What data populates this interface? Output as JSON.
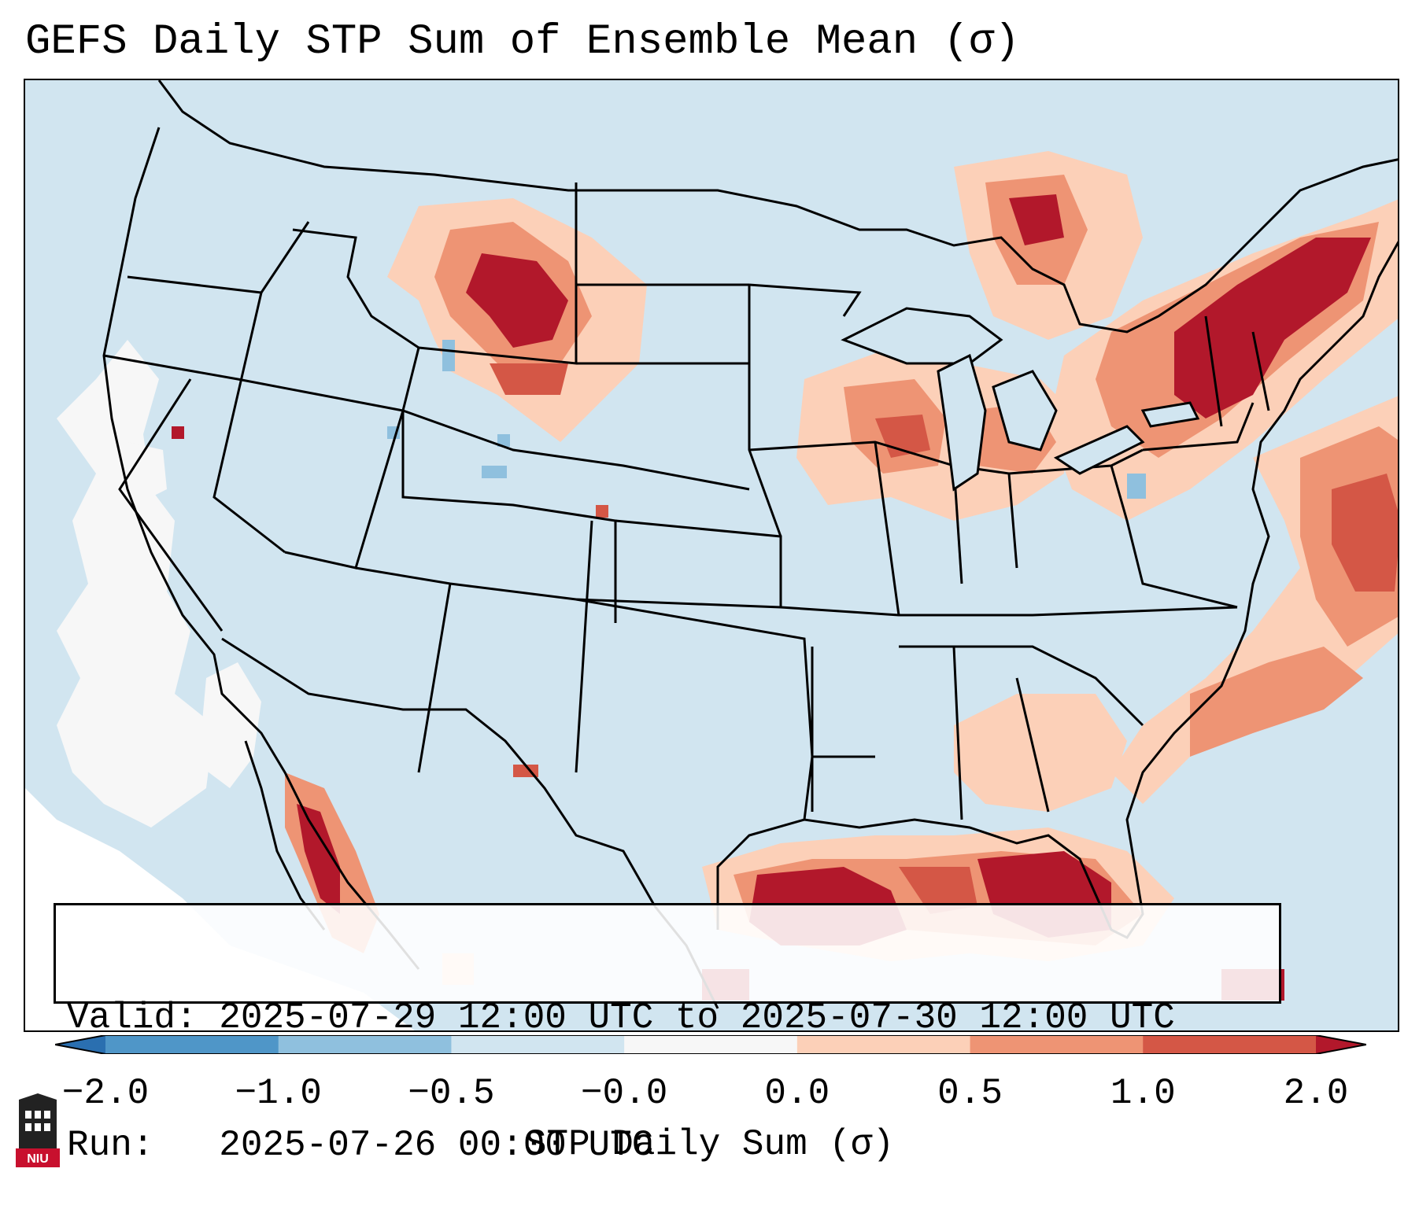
{
  "title": "GEFS Daily STP Sum of Ensemble Mean (σ)",
  "info": {
    "valid_line": "Valid: 2025-07-29 12:00 UTC to 2025-07-30 12:00 UTC",
    "run_line": "Run:   2025-07-26 00:00 UTC"
  },
  "colorbar": {
    "label": "STP Daily Sum (σ)",
    "ticks": [
      "−2.0",
      "−1.0",
      "−0.5",
      "−0.0",
      "0.0",
      "0.5",
      "1.0",
      "2.0"
    ],
    "colors": [
      "#2a6fb0",
      "#4f96c8",
      "#8fc0de",
      "#d1e5f0",
      "#f7f7f7",
      "#fcd0b8",
      "#ee9474",
      "#d45746",
      "#b2182b"
    ]
  },
  "logo": {
    "text": "NIU"
  },
  "map": {
    "ocean_color": "#ffffff",
    "land_color": "#d1e5f0",
    "border_color": "#000000"
  }
}
